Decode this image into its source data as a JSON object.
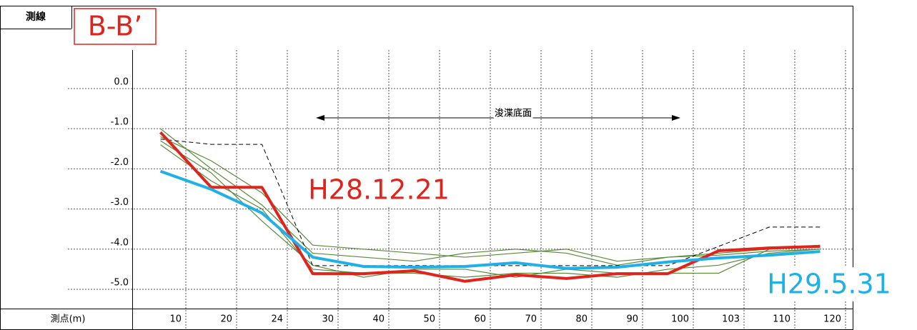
{
  "chart_data": {
    "type": "line",
    "title": "B-B’",
    "header_label": "測線",
    "x_label": "測点(m)",
    "annotation": "浚渫底面",
    "categories": [
      "10",
      "20",
      "24",
      "30",
      "40",
      "50",
      "60",
      "70",
      "80",
      "90",
      "100",
      "103",
      "110",
      "120"
    ],
    "ylim": [
      -5.48,
      0.96
    ],
    "yticks": [
      {
        "value": 0,
        "label": "0.0"
      },
      {
        "value": -1,
        "label": "-1.0"
      },
      {
        "value": -2,
        "label": "-2.0"
      },
      {
        "value": -3,
        "label": "-3.0"
      },
      {
        "value": -4,
        "label": "-4.0"
      },
      {
        "value": -5,
        "label": "-5.0"
      }
    ],
    "grid": true,
    "series": [
      {
        "color": "#5a8a3a",
        "values": [
          -1.0,
          -2.0,
          -2.9,
          -4.1,
          -4.2,
          -4.3,
          -4.1,
          -4.0,
          -4.1,
          -4.4,
          -4.2,
          -4.1,
          -4.0,
          -3.9
        ]
      },
      {
        "color": "#5a8a3a",
        "values": [
          -1.2,
          -1.8,
          -2.6,
          -3.9,
          -4.0,
          -4.1,
          -4.2,
          -4.1,
          -4.0,
          -4.3,
          -4.2,
          -4.15,
          -4.05,
          -4.0
        ]
      },
      {
        "color": "#5a8a3a",
        "values": [
          -1.4,
          -2.3,
          -3.0,
          -4.5,
          -4.6,
          -4.6,
          -4.7,
          -4.6,
          -4.6,
          -4.7,
          -4.5,
          -4.4,
          -4.1,
          -4.0
        ]
      },
      {
        "color": "#5a8a3a",
        "values": [
          -1.3,
          -2.1,
          -3.3,
          -4.4,
          -4.7,
          -4.5,
          -4.5,
          -4.7,
          -4.5,
          -4.6,
          -4.6,
          -4.6,
          -4.0,
          -3.95
        ]
      },
      {
        "color": "#000000",
        "dashed": true,
        "values": [
          -1.26,
          -1.39,
          -1.39,
          -4.41,
          -4.41,
          -4.41,
          -4.41,
          -4.41,
          -4.41,
          -4.41,
          -4.41,
          -3.93,
          -3.45,
          -3.45
        ]
      },
      {
        "name": "H28.12.21",
        "color": "#e0231c",
        "values": [
          -1.09,
          -2.46,
          -2.46,
          -4.61,
          -4.61,
          -4.54,
          -4.8,
          -4.64,
          -4.73,
          -4.61,
          -4.61,
          -4.04,
          -3.97,
          -3.93
        ]
      },
      {
        "name": "H29.5.31",
        "color": "#1fb0e8",
        "values": [
          -2.06,
          -2.51,
          -3.1,
          -4.2,
          -4.43,
          -4.45,
          -4.43,
          -4.34,
          -4.48,
          -4.45,
          -4.32,
          -4.22,
          -4.15,
          -4.06
        ]
      }
    ]
  }
}
